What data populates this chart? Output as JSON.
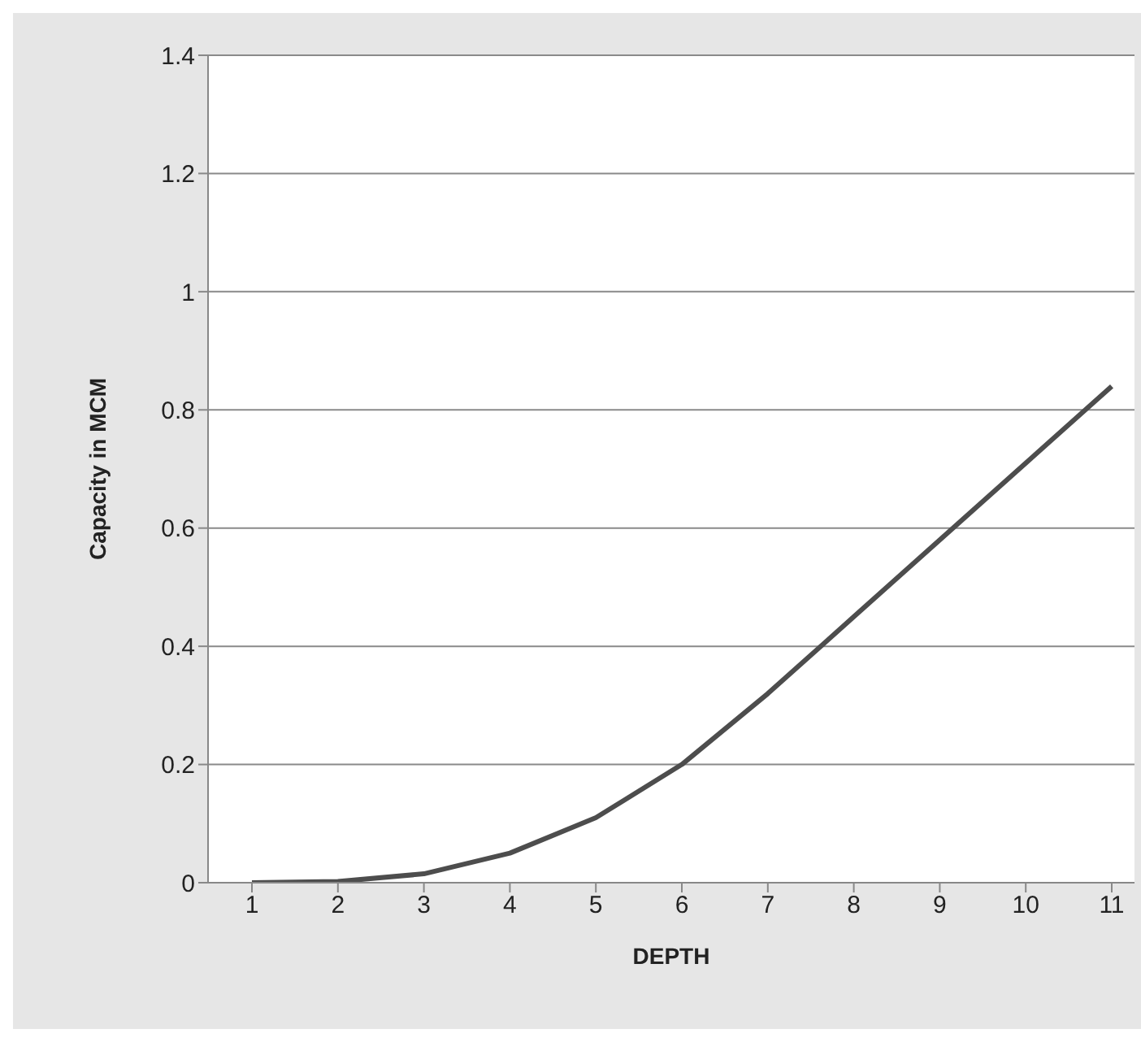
{
  "chart_data": {
    "type": "line",
    "xlabel": "DEPTH",
    "ylabel": "Capacity in MCM",
    "categories": [
      "1",
      "2",
      "3",
      "4",
      "5",
      "6",
      "7",
      "8",
      "9",
      "10",
      "11"
    ],
    "series": [
      {
        "color": "#4d4d4d",
        "values": [
          0,
          0.002,
          0.015,
          0.05,
          0.11,
          0.2,
          0.32,
          0.45,
          0.58,
          0.71,
          0.84
        ]
      }
    ],
    "ylim": [
      0,
      1.4
    ],
    "yticks": [
      0,
      0.2,
      0.4,
      0.6,
      0.8,
      1,
      1.2,
      1.4
    ],
    "grid": "y",
    "marker": "none",
    "line_style": "solid"
  }
}
